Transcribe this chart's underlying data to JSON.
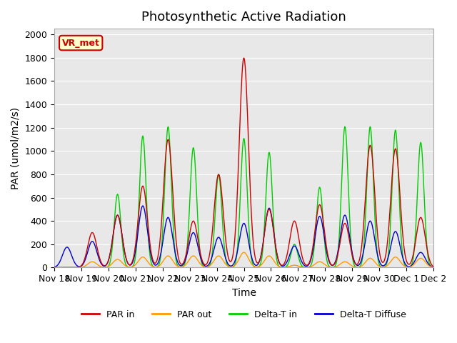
{
  "title": "Photosynthetic Active Radiation",
  "ylabel": "PAR (umol/m2/s)",
  "xlabel": "Time",
  "ylim": [
    0,
    2050
  ],
  "yticks": [
    0,
    200,
    400,
    600,
    800,
    1000,
    1200,
    1400,
    1600,
    1800,
    2000
  ],
  "background_color": "#e8e8e8",
  "legend_labels": [
    "PAR in",
    "PAR out",
    "Delta-T in",
    "Delta-T Diffuse"
  ],
  "legend_colors": [
    "#cc0000",
    "#ff9900",
    "#00cc00",
    "#0000cc"
  ],
  "annotation_text": "VR_met",
  "annotation_color": "#cc0000",
  "annotation_bg": "#ffffcc",
  "x_tick_labels": [
    "Nov 18",
    "Nov 19",
    "Nov 20",
    "Nov 21",
    "Nov 22",
    "Nov 23",
    "Nov 24",
    "Nov 25",
    "Nov 26",
    "Nov 27",
    "Nov 28",
    "Nov 29",
    "Nov 30",
    "Dec 1",
    "Dec 2"
  ],
  "n_days": 15,
  "title_fontsize": 13,
  "axis_label_fontsize": 10,
  "tick_fontsize": 9
}
